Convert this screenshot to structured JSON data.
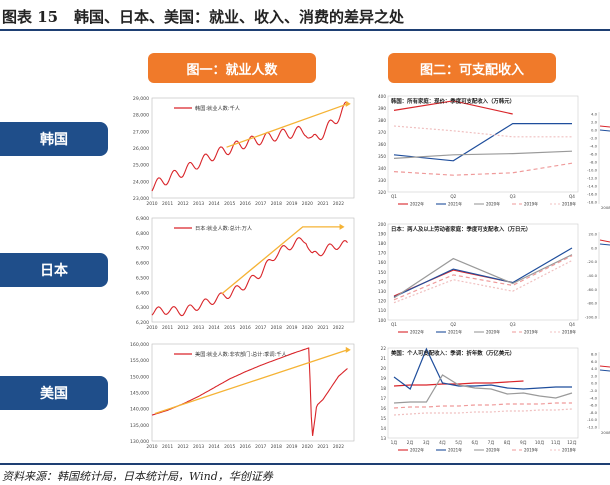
{
  "figure": {
    "label": "图表 15",
    "title": "韩国、日本、美国：就业、收入、消费的差异之处",
    "source": "资料来源：韩国统计局，日本统计局，Wind，华创证券"
  },
  "headers": {
    "left": "图一：就业人数",
    "right": "图二：可支配收入"
  },
  "countries": [
    "韩国",
    "日本",
    "美国"
  ],
  "colors": {
    "red": "#d9252a",
    "blue": "#1f4e9c",
    "gray": "#9a9a9a",
    "salmon": "#ef9a9a",
    "orange": "#f5b335",
    "navy": "#1f4e8a",
    "accent": "#f07a2a"
  },
  "chart_data": [
    {
      "id": "kr_emp",
      "type": "line",
      "title": "韩国:就业人数:千人",
      "x_ticks": [
        "2010",
        "2011",
        "2012",
        "2013",
        "2014",
        "2015",
        "2016",
        "2017",
        "2018",
        "2019",
        "2020",
        "2021",
        "2022"
      ],
      "x_range": [
        2010,
        2023
      ],
      "ylim": [
        23000,
        29000
      ],
      "y_ticks": [
        "23,000",
        "24,000",
        "25,000",
        "26,000",
        "27,000",
        "28,000",
        "29,000"
      ],
      "y_tick_values": [
        23000,
        24000,
        25000,
        26000,
        27000,
        28000,
        29000
      ],
      "anchors": [
        [
          2010.0,
          23700
        ],
        [
          2012,
          24600
        ],
        [
          2014,
          25600
        ],
        [
          2016,
          26300
        ],
        [
          2018,
          26750
        ],
        [
          2019.9,
          27050
        ],
        [
          2020.3,
          26400
        ],
        [
          2021,
          26900
        ],
        [
          2022,
          27900
        ],
        [
          2022.6,
          28600
        ]
      ],
      "seasonal_amp": 320,
      "series_names": [],
      "trend": [
        [
          2014.8,
          26050
        ],
        [
          2022.6,
          28650
        ]
      ]
    },
    {
      "id": "jp_emp",
      "type": "line",
      "title": "日本:就业人数:总计:万人",
      "x_ticks": [
        "2010",
        "2011",
        "2012",
        "2013",
        "2014",
        "2015",
        "2016",
        "2017",
        "2018",
        "2019",
        "2020",
        "2021",
        "2022"
      ],
      "x_range": [
        2010,
        2023
      ],
      "ylim": [
        6200,
        6900
      ],
      "y_ticks": [
        "6,200",
        "6,300",
        "6,400",
        "6,500",
        "6,600",
        "6,700",
        "6,800",
        "6,900"
      ],
      "y_tick_values": [
        6200,
        6300,
        6400,
        6500,
        6600,
        6700,
        6800,
        6900
      ],
      "anchors": [
        [
          2010.0,
          6270
        ],
        [
          2011,
          6280
        ],
        [
          2012,
          6270
        ],
        [
          2013,
          6310
        ],
        [
          2014,
          6350
        ],
        [
          2015,
          6390
        ],
        [
          2016,
          6450
        ],
        [
          2017,
          6530
        ],
        [
          2018,
          6660
        ],
        [
          2019,
          6720
        ],
        [
          2019.9,
          6760
        ],
        [
          2020.3,
          6640
        ],
        [
          2021,
          6680
        ],
        [
          2022,
          6720
        ],
        [
          2022.6,
          6720
        ]
      ],
      "seasonal_amp": 28,
      "series_names": [],
      "trend": [
        [
          2014.5,
          6390
        ],
        [
          2019.7,
          6840
        ],
        [
          2022.2,
          6840
        ]
      ]
    },
    {
      "id": "us_emp",
      "type": "line",
      "title": "美国:就业人数:非农部门:总计:季调:千人",
      "x_ticks": [
        "2010",
        "2011",
        "2012",
        "2013",
        "2014",
        "2015",
        "2016",
        "2017",
        "2018",
        "2019",
        "2020",
        "2021",
        "2022"
      ],
      "x_range": [
        2010,
        2023
      ],
      "ylim": [
        130000,
        160000
      ],
      "y_ticks": [
        "130,000",
        "135,000",
        "140,000",
        "145,000",
        "150,000",
        "155,000",
        "160,000"
      ],
      "y_tick_values": [
        130000,
        135000,
        140000,
        145000,
        150000,
        155000,
        160000
      ],
      "anchors": [
        [
          2010.0,
          138000
        ],
        [
          2011,
          139500
        ],
        [
          2012,
          141500
        ],
        [
          2013,
          143800
        ],
        [
          2014,
          146500
        ],
        [
          2015,
          149200
        ],
        [
          2016,
          151400
        ],
        [
          2017,
          153400
        ],
        [
          2018,
          155200
        ],
        [
          2019,
          157000
        ],
        [
          2020.1,
          158800
        ],
        [
          2020.3,
          130400
        ],
        [
          2020.6,
          141000
        ],
        [
          2021,
          142800
        ],
        [
          2022,
          150000
        ],
        [
          2022.6,
          152500
        ]
      ],
      "seasonal_amp": 0,
      "series_names": [],
      "trend": [
        [
          2010.2,
          138500
        ],
        [
          2022.6,
          158200
        ]
      ]
    },
    {
      "id": "kr_income",
      "type": "line",
      "title": "韩国：所有家庭：现价：季度可支配收入（万韩元）",
      "categories": [
        "Q1",
        "Q2",
        "Q3",
        "Q4"
      ],
      "ylim": [
        320,
        400
      ],
      "y_ticks": [
        "320",
        "330",
        "340",
        "350",
        "360",
        "370",
        "380",
        "390",
        "400"
      ],
      "y_tick_values": [
        320,
        330,
        340,
        350,
        360,
        370,
        380,
        390,
        400
      ],
      "series": [
        {
          "name": "2022年",
          "color": "#d9252a",
          "dash": "",
          "values": [
            388,
            396,
            385,
            null
          ]
        },
        {
          "name": "2021年",
          "color": "#1f4e9c",
          "dash": "",
          "values": [
            351,
            346,
            377,
            377
          ]
        },
        {
          "name": "2020年",
          "color": "#9a9a9a",
          "dash": "",
          "values": [
            348,
            351,
            352,
            354
          ]
        },
        {
          "name": "2019年",
          "color": "#ef9a9a",
          "dash": "4,3",
          "values": [
            337,
            334,
            336,
            344
          ]
        },
        {
          "name": "2018年",
          "color": "#f0c0c0",
          "dash": "2,2",
          "values": [
            375,
            371,
            366,
            366
          ]
        }
      ]
    },
    {
      "id": "jp_income",
      "type": "line",
      "title": "日本：两人及以上劳动者家庭：季度可支配收入（万日元）",
      "categories": [
        "Q1",
        "Q2",
        "Q3",
        "Q4"
      ],
      "ylim": [
        100,
        200
      ],
      "y_ticks": [
        "100",
        "110",
        "120",
        "130",
        "140",
        "150",
        "160",
        "170",
        "180",
        "190",
        "200"
      ],
      "y_tick_values": [
        100,
        110,
        120,
        130,
        140,
        150,
        160,
        170,
        180,
        190,
        200
      ],
      "series": [
        {
          "name": "2022年",
          "color": "#d9252a",
          "dash": "",
          "values": [
            125,
            152,
            139,
            null
          ]
        },
        {
          "name": "2021年",
          "color": "#1f4e9c",
          "dash": "",
          "values": [
            124,
            153,
            139,
            175
          ]
        },
        {
          "name": "2020年",
          "color": "#9a9a9a",
          "dash": "",
          "values": [
            123,
            164,
            138,
            168
          ]
        },
        {
          "name": "2019年",
          "color": "#ef9a9a",
          "dash": "4,3",
          "values": [
            121,
            147,
            136,
            167
          ]
        },
        {
          "name": "2018年",
          "color": "#f0c0c0",
          "dash": "2,2",
          "values": [
            118,
            142,
            130,
            162
          ]
        }
      ]
    },
    {
      "id": "us_income",
      "type": "line",
      "title": "美国：个人可支配收入：季调：折年数（万亿美元）",
      "categories": [
        "1月",
        "2月",
        "3月",
        "4月",
        "5月",
        "6月",
        "7月",
        "8月",
        "9月",
        "10月",
        "11月",
        "12月"
      ],
      "ylim": [
        13,
        22
      ],
      "y_ticks": [
        "13",
        "14",
        "15",
        "16",
        "17",
        "18",
        "19",
        "20",
        "21",
        "22"
      ],
      "y_tick_values": [
        13,
        14,
        15,
        16,
        17,
        18,
        19,
        20,
        21,
        22
      ],
      "series": [
        {
          "name": "2022年",
          "color": "#d9252a",
          "dash": "",
          "values": [
            18.2,
            18.3,
            18.3,
            18.4,
            18.4,
            18.5,
            18.5,
            18.6,
            18.7,
            null,
            null,
            null
          ]
        },
        {
          "name": "2021年",
          "color": "#1f4e9c",
          "dash": "",
          "values": [
            19.1,
            17.9,
            21.9,
            18.5,
            18.2,
            18.2,
            18.3,
            18.0,
            17.9,
            18.0,
            18.1,
            18.1
          ]
        },
        {
          "name": "2020年",
          "color": "#9a9a9a",
          "dash": "",
          "values": [
            16.5,
            16.6,
            16.6,
            19.3,
            18.3,
            18.0,
            17.9,
            17.4,
            17.5,
            17.2,
            17.0,
            17.5
          ]
        },
        {
          "name": "2019年",
          "color": "#ef9a9a",
          "dash": "4,3",
          "values": [
            16.0,
            16.1,
            16.1,
            16.2,
            16.2,
            16.3,
            16.3,
            16.4,
            16.4,
            16.4,
            16.5,
            16.5
          ]
        },
        {
          "name": "2018年",
          "color": "#f0c0c0",
          "dash": "2,2",
          "values": [
            15.3,
            15.4,
            15.5,
            15.5,
            15.5,
            15.6,
            15.6,
            15.7,
            15.7,
            15.8,
            15.8,
            15.9
          ]
        }
      ]
    },
    {
      "id": "side_top",
      "type": "line",
      "title": "",
      "categories": [],
      "series": [],
      "y_ticks": [
        "4.0",
        "2.0",
        "0.0",
        "-2.0",
        "-4.0",
        "-6.0",
        "-8.0",
        "-10.0",
        "-12.0",
        "-14.0",
        "-16.0",
        "-18.0"
      ],
      "x_ticks": [
        "2008"
      ]
    },
    {
      "id": "side_mid",
      "type": "line",
      "title": "",
      "categories": [],
      "series": [],
      "y_ticks": [
        "20.0",
        "0.0",
        "-20.0",
        "-40.0",
        "-60.0",
        "-80.0",
        "-100.0"
      ],
      "x_ticks": []
    },
    {
      "id": "side_bot",
      "type": "line",
      "title": "",
      "categories": [],
      "series": [],
      "y_ticks": [
        "8.0",
        "6.0",
        "4.0",
        "2.0",
        "0.0",
        "-2.0",
        "-4.0",
        "-6.0",
        "-8.0",
        "-10.0",
        "-12.0"
      ],
      "x_ticks": [
        "2008"
      ]
    }
  ]
}
